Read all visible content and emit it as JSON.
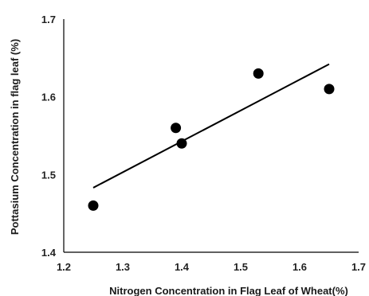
{
  "chart_data": {
    "type": "scatter",
    "title": "",
    "xlabel": "Nitrogen Concentration in Flag Leaf of Wheat(%)",
    "ylabel": "Pottasium Concentration in flag leaf (%)",
    "xlim": [
      1.2,
      1.7
    ],
    "ylim": [
      1.4,
      1.7
    ],
    "x_ticks": [
      "1.2",
      "1.3",
      "1.4",
      "1.5",
      "1.6",
      "1.7"
    ],
    "y_ticks": [
      "1.4",
      "1.5",
      "1.6",
      "1.7"
    ],
    "grid": false,
    "legend": "none",
    "series": [
      {
        "points": [
          {
            "x": 1.25,
            "y": 1.46
          },
          {
            "x": 1.39,
            "y": 1.56
          },
          {
            "x": 1.4,
            "y": 1.54
          },
          {
            "x": 1.53,
            "y": 1.63
          },
          {
            "x": 1.65,
            "y": 1.61
          }
        ],
        "color": "#000000"
      }
    ],
    "trendline": {
      "type": "linear",
      "start": {
        "x": 1.25,
        "y": 1.483
      },
      "end": {
        "x": 1.65,
        "y": 1.642
      },
      "color": "#000000"
    }
  }
}
